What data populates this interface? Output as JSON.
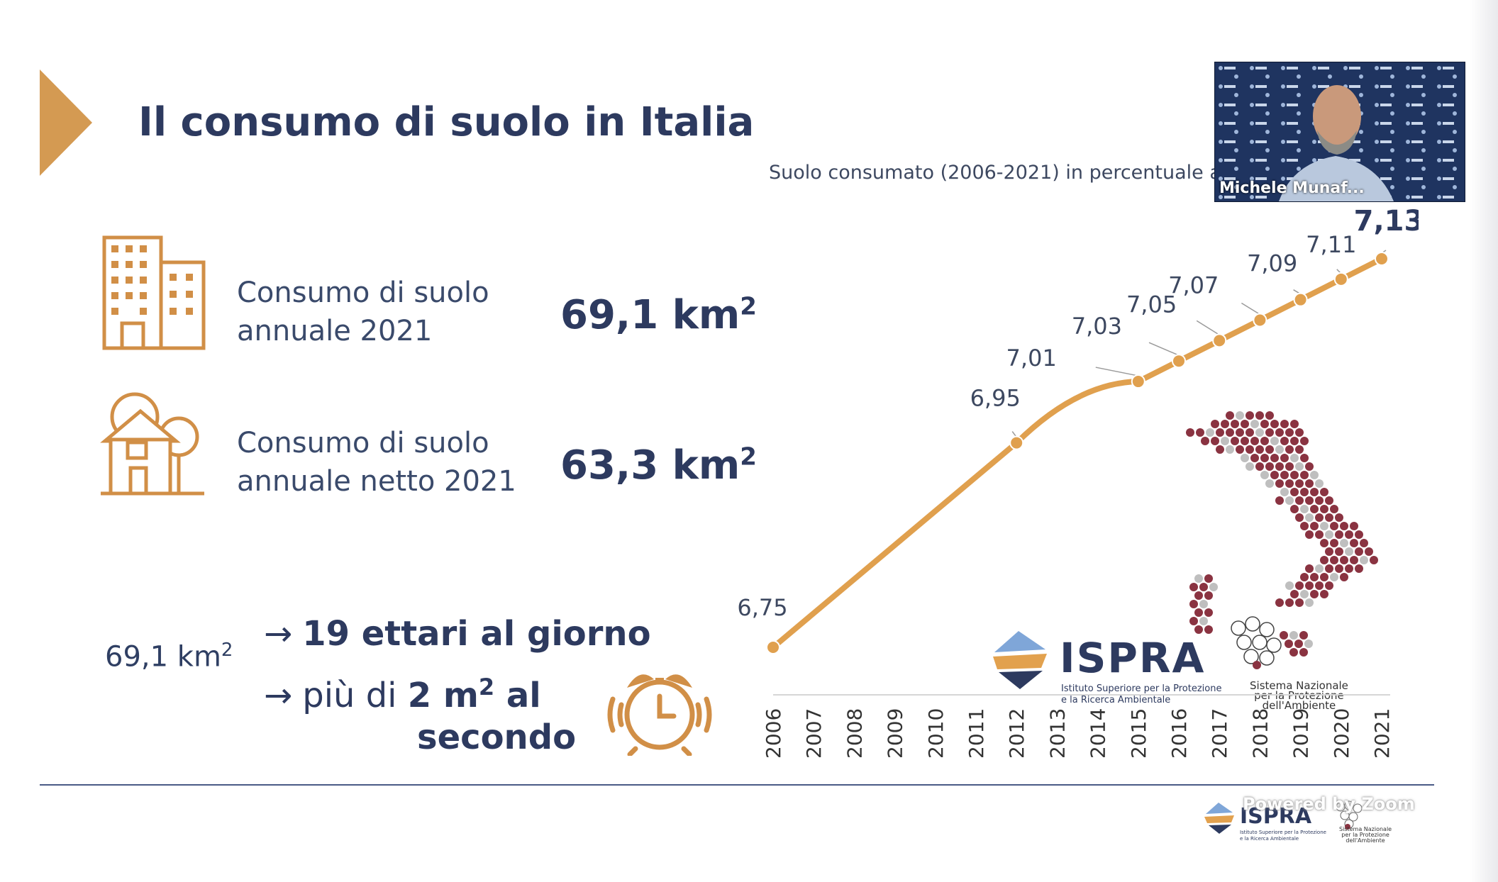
{
  "slide": {
    "title": "Il consumo di suolo in Italia"
  },
  "stats": [
    {
      "label_line1": "Consumo di suolo",
      "label_line2": "annuale 2021",
      "value": "69,1 km",
      "unit_exp": "2"
    },
    {
      "label_line1": "Consumo di suolo",
      "label_line2": "annuale netto 2021",
      "value": "63,3 km",
      "unit_exp": "2"
    }
  ],
  "rate": {
    "left_value": "69,1 km",
    "left_exp": "2",
    "arrow": "→",
    "line1": "19 ettari al giorno",
    "line2_prefix": "più di ",
    "line2_bold": "2 m",
    "line2_exp": "2",
    "line2_suffix": " al",
    "line3": "secondo"
  },
  "chart_data": {
    "type": "line",
    "title": "Suolo consumato (2006-2021) in percentuale a",
    "x": [
      "2006",
      "2007",
      "2008",
      "2009",
      "2010",
      "2011",
      "2012",
      "2013",
      "2014",
      "2015",
      "2016",
      "2017",
      "2018",
      "2019",
      "2020",
      "2021"
    ],
    "points": [
      {
        "x": "2006",
        "y": 6.75,
        "label": "6,75"
      },
      {
        "x": "2012",
        "y": 6.95,
        "label": "6,95"
      },
      {
        "x": "2015",
        "y": 7.01,
        "label": "7,01"
      },
      {
        "x": "2016",
        "y": 7.03,
        "label": "7,03"
      },
      {
        "x": "2017",
        "y": 7.05,
        "label": "7,05"
      },
      {
        "x": "2018",
        "y": 7.07,
        "label": "7,07"
      },
      {
        "x": "2019",
        "y": 7.09,
        "label": "7,09"
      },
      {
        "x": "2020",
        "y": 7.11,
        "label": "7,11"
      },
      {
        "x": "2021",
        "y": 7.13,
        "label": "7,13"
      }
    ],
    "ylim": [
      6.75,
      7.13
    ],
    "xlabel": "",
    "ylabel": "",
    "color": "#e0a04e"
  },
  "video": {
    "participant_name": "Michele Munaf..."
  },
  "logos": {
    "ispra_name": "ISPRA",
    "ispra_sub1": "Istituto Superiore per la Protezione",
    "ispra_sub2": "e la Ricerca Ambientale",
    "snpa_line1": "Sistema Nazionale",
    "snpa_line2": "per la Protezione",
    "snpa_line3": "dell'Ambiente"
  },
  "watermark": "Powered by Zoom",
  "colors": {
    "accent": "#d18f47",
    "navy": "#2d3a5f",
    "line": "#e0a04e",
    "map": "#8a3341"
  }
}
